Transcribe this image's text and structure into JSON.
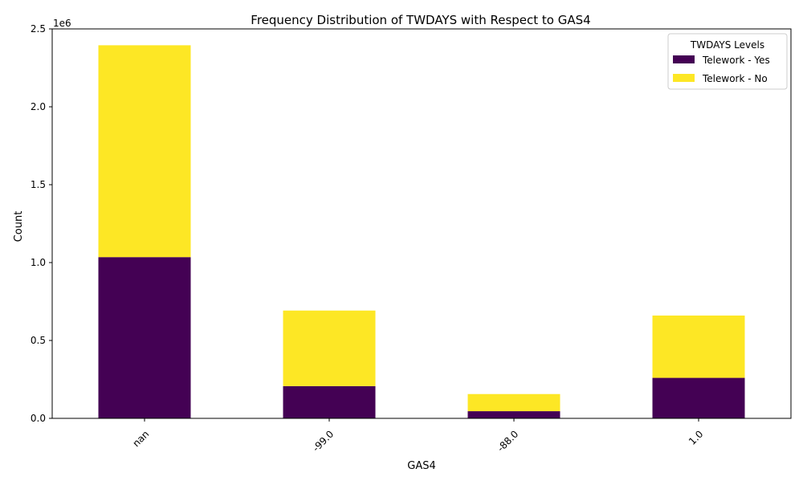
{
  "chart_data": {
    "type": "bar",
    "stacked": true,
    "title": "Frequency Distribution of TWDAYS with Respect to GAS4",
    "xlabel": "GAS4",
    "ylabel": "Count",
    "y_scale_label": "1e6",
    "categories": [
      "nan",
      "-99.0",
      "-88.0",
      "1.0"
    ],
    "series": [
      {
        "name": "Telework - Yes",
        "color": "#440154",
        "values": [
          1035000,
          207000,
          46000,
          260000
        ]
      },
      {
        "name": "Telework - No",
        "color": "#fde725",
        "values": [
          1360000,
          485000,
          110000,
          400000
        ]
      }
    ],
    "ylim": [
      0,
      2500000
    ],
    "yticks": [
      0,
      500000,
      1000000,
      1500000,
      2000000,
      2500000
    ],
    "ytick_labels": [
      "0.0",
      "0.5",
      "1.0",
      "1.5",
      "2.0",
      "2.5"
    ],
    "grid": false,
    "legend": {
      "title": "TWDAYS Levels",
      "placement": "top-right"
    }
  }
}
